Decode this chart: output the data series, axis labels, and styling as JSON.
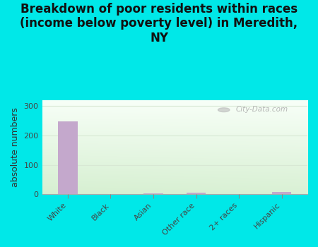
{
  "title": "Breakdown of poor residents within races\n(income below poverty level) in Meredith,\nNY",
  "categories": [
    "White",
    "Black",
    "Asian",
    "Other race",
    "2+ races",
    "Hispanic"
  ],
  "values": [
    247,
    0,
    3,
    5,
    0,
    7
  ],
  "bar_color": "#c4a8cc",
  "ylabel": "absolute numbers",
  "ylim": [
    0,
    320
  ],
  "yticks": [
    0,
    100,
    200,
    300
  ],
  "bg_outer": "#00e8e8",
  "bg_plot_topleft": "#e8f4e4",
  "bg_plot_topright": "#f8fefb",
  "bg_plot_bottomleft": "#d8ecd0",
  "bg_plot_bottomright": "#eef8ea",
  "grid_color": "#e0ece0",
  "title_fontsize": 12,
  "axis_label_fontsize": 9,
  "tick_fontsize": 8,
  "watermark": "City-Data.com"
}
